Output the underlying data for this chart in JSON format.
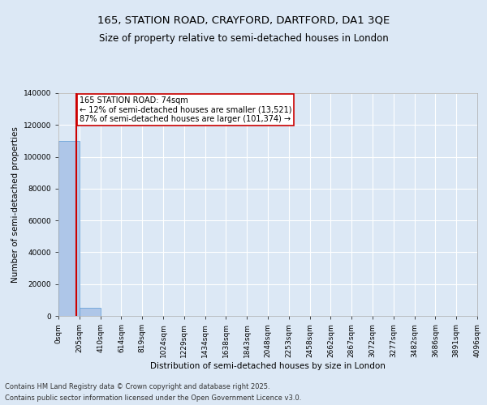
{
  "title_line1": "165, STATION ROAD, CRAYFORD, DARTFORD, DA1 3QE",
  "title_line2": "Size of property relative to semi-detached houses in London",
  "xlabel": "Distribution of semi-detached houses by size in London",
  "ylabel": "Number of semi-detached properties",
  "subject_size_bin": 0.36,
  "annotation_line1": "165 STATION ROAD: 74sqm",
  "annotation_line2": "← 12% of semi-detached houses are smaller (13,521)",
  "annotation_line3": "87% of semi-detached houses are larger (101,374) →",
  "bin_labels": [
    "0sqm",
    "205sqm",
    "410sqm",
    "614sqm",
    "819sqm",
    "1024sqm",
    "1229sqm",
    "1434sqm",
    "1638sqm",
    "1843sqm",
    "2048sqm",
    "2253sqm",
    "2458sqm",
    "2662sqm",
    "2867sqm",
    "3072sqm",
    "3277sqm",
    "3482sqm",
    "3686sqm",
    "3891sqm",
    "4096sqm"
  ],
  "bar_heights": [
    110000,
    5000,
    0,
    0,
    0,
    0,
    0,
    0,
    0,
    0,
    0,
    0,
    0,
    0,
    0,
    0,
    0,
    0,
    0,
    0
  ],
  "bar_color": "#aec6e8",
  "bar_edge_color": "#5b9bd5",
  "subject_line_color": "#cc0000",
  "annotation_box_edge_color": "#cc0000",
  "background_color": "#dce8f5",
  "plot_bg_color": "#dce8f5",
  "ylim": [
    0,
    140000
  ],
  "yticks": [
    0,
    20000,
    40000,
    60000,
    80000,
    100000,
    120000,
    140000
  ],
  "grid_color": "#ffffff",
  "footer_line1": "Contains HM Land Registry data © Crown copyright and database right 2025.",
  "footer_line2": "Contains public sector information licensed under the Open Government Licence v3.0.",
  "title_fontsize": 9.5,
  "subtitle_fontsize": 8.5,
  "axis_label_fontsize": 7.5,
  "tick_fontsize": 6.5,
  "annotation_fontsize": 7,
  "footer_fontsize": 6
}
